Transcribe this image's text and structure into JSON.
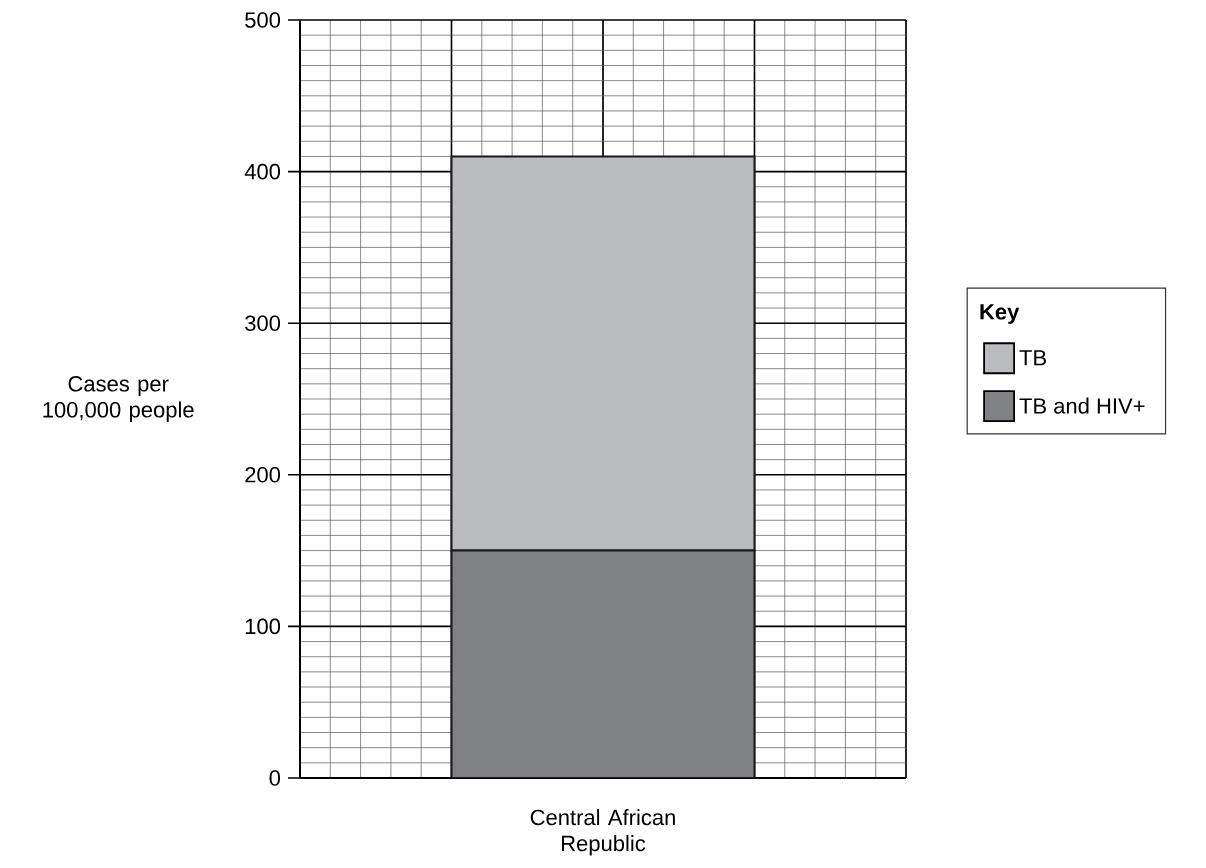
{
  "chart_data": {
    "type": "bar",
    "stacked": true,
    "categories": [
      "Central African Republic"
    ],
    "series": [
      {
        "name": "TB and HIV+",
        "color": "#808185",
        "values": [
          150
        ]
      },
      {
        "name": "TB",
        "color": "#bbbcc0",
        "values": [
          260
        ]
      }
    ],
    "ylabel": "Cases per 100,000 people",
    "legend_title": "Key",
    "legend": "right",
    "ylim": [
      0,
      500
    ],
    "yticks": [
      0,
      100,
      200,
      300,
      400,
      500
    ],
    "grid": true
  }
}
